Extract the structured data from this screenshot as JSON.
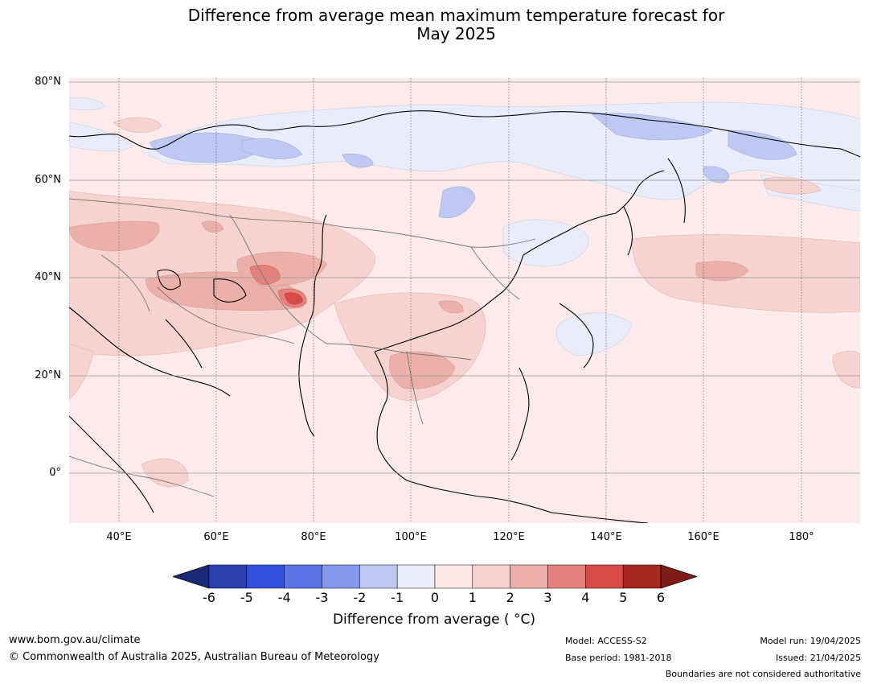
{
  "title_line1": "Difference from average mean maximum temperature forecast for",
  "title_line2": "May 2025",
  "lat_labels": [
    "80°N",
    "60°N",
    "40°N",
    "20°N",
    "0°"
  ],
  "lon_labels": [
    "40°E",
    "60°E",
    "80°E",
    "100°E",
    "120°E",
    "140°E",
    "160°E",
    "180°"
  ],
  "colorbar": {
    "ticks": [
      "-6",
      "-5",
      "-4",
      "-3",
      "-2",
      "-1",
      "0",
      "1",
      "2",
      "3",
      "4",
      "5",
      "6"
    ],
    "colors": [
      "#1b2a78",
      "#2a3fb0",
      "#3150e0",
      "#5c74e6",
      "#8598ec",
      "#bec8f3",
      "#e8ecfb",
      "#fde9e8",
      "#f6d3d0",
      "#ecb0ab",
      "#e4817b",
      "#d84a44",
      "#a8281f",
      "#7d1d16"
    ],
    "label": "Difference from average ( °C)"
  },
  "footer": {
    "url": "www.bom.gov.au/climate",
    "copyright": "© Commonwealth of Australia 2025, Australian Bureau of Meteorology",
    "model": "Model: ACCESS-S2",
    "base_period": "Base period: 1981-2018",
    "model_run": "Model run: 19/04/2025",
    "issued": "Issued: 21/04/2025",
    "disclaimer": "Boundaries are not considered authoritative"
  }
}
